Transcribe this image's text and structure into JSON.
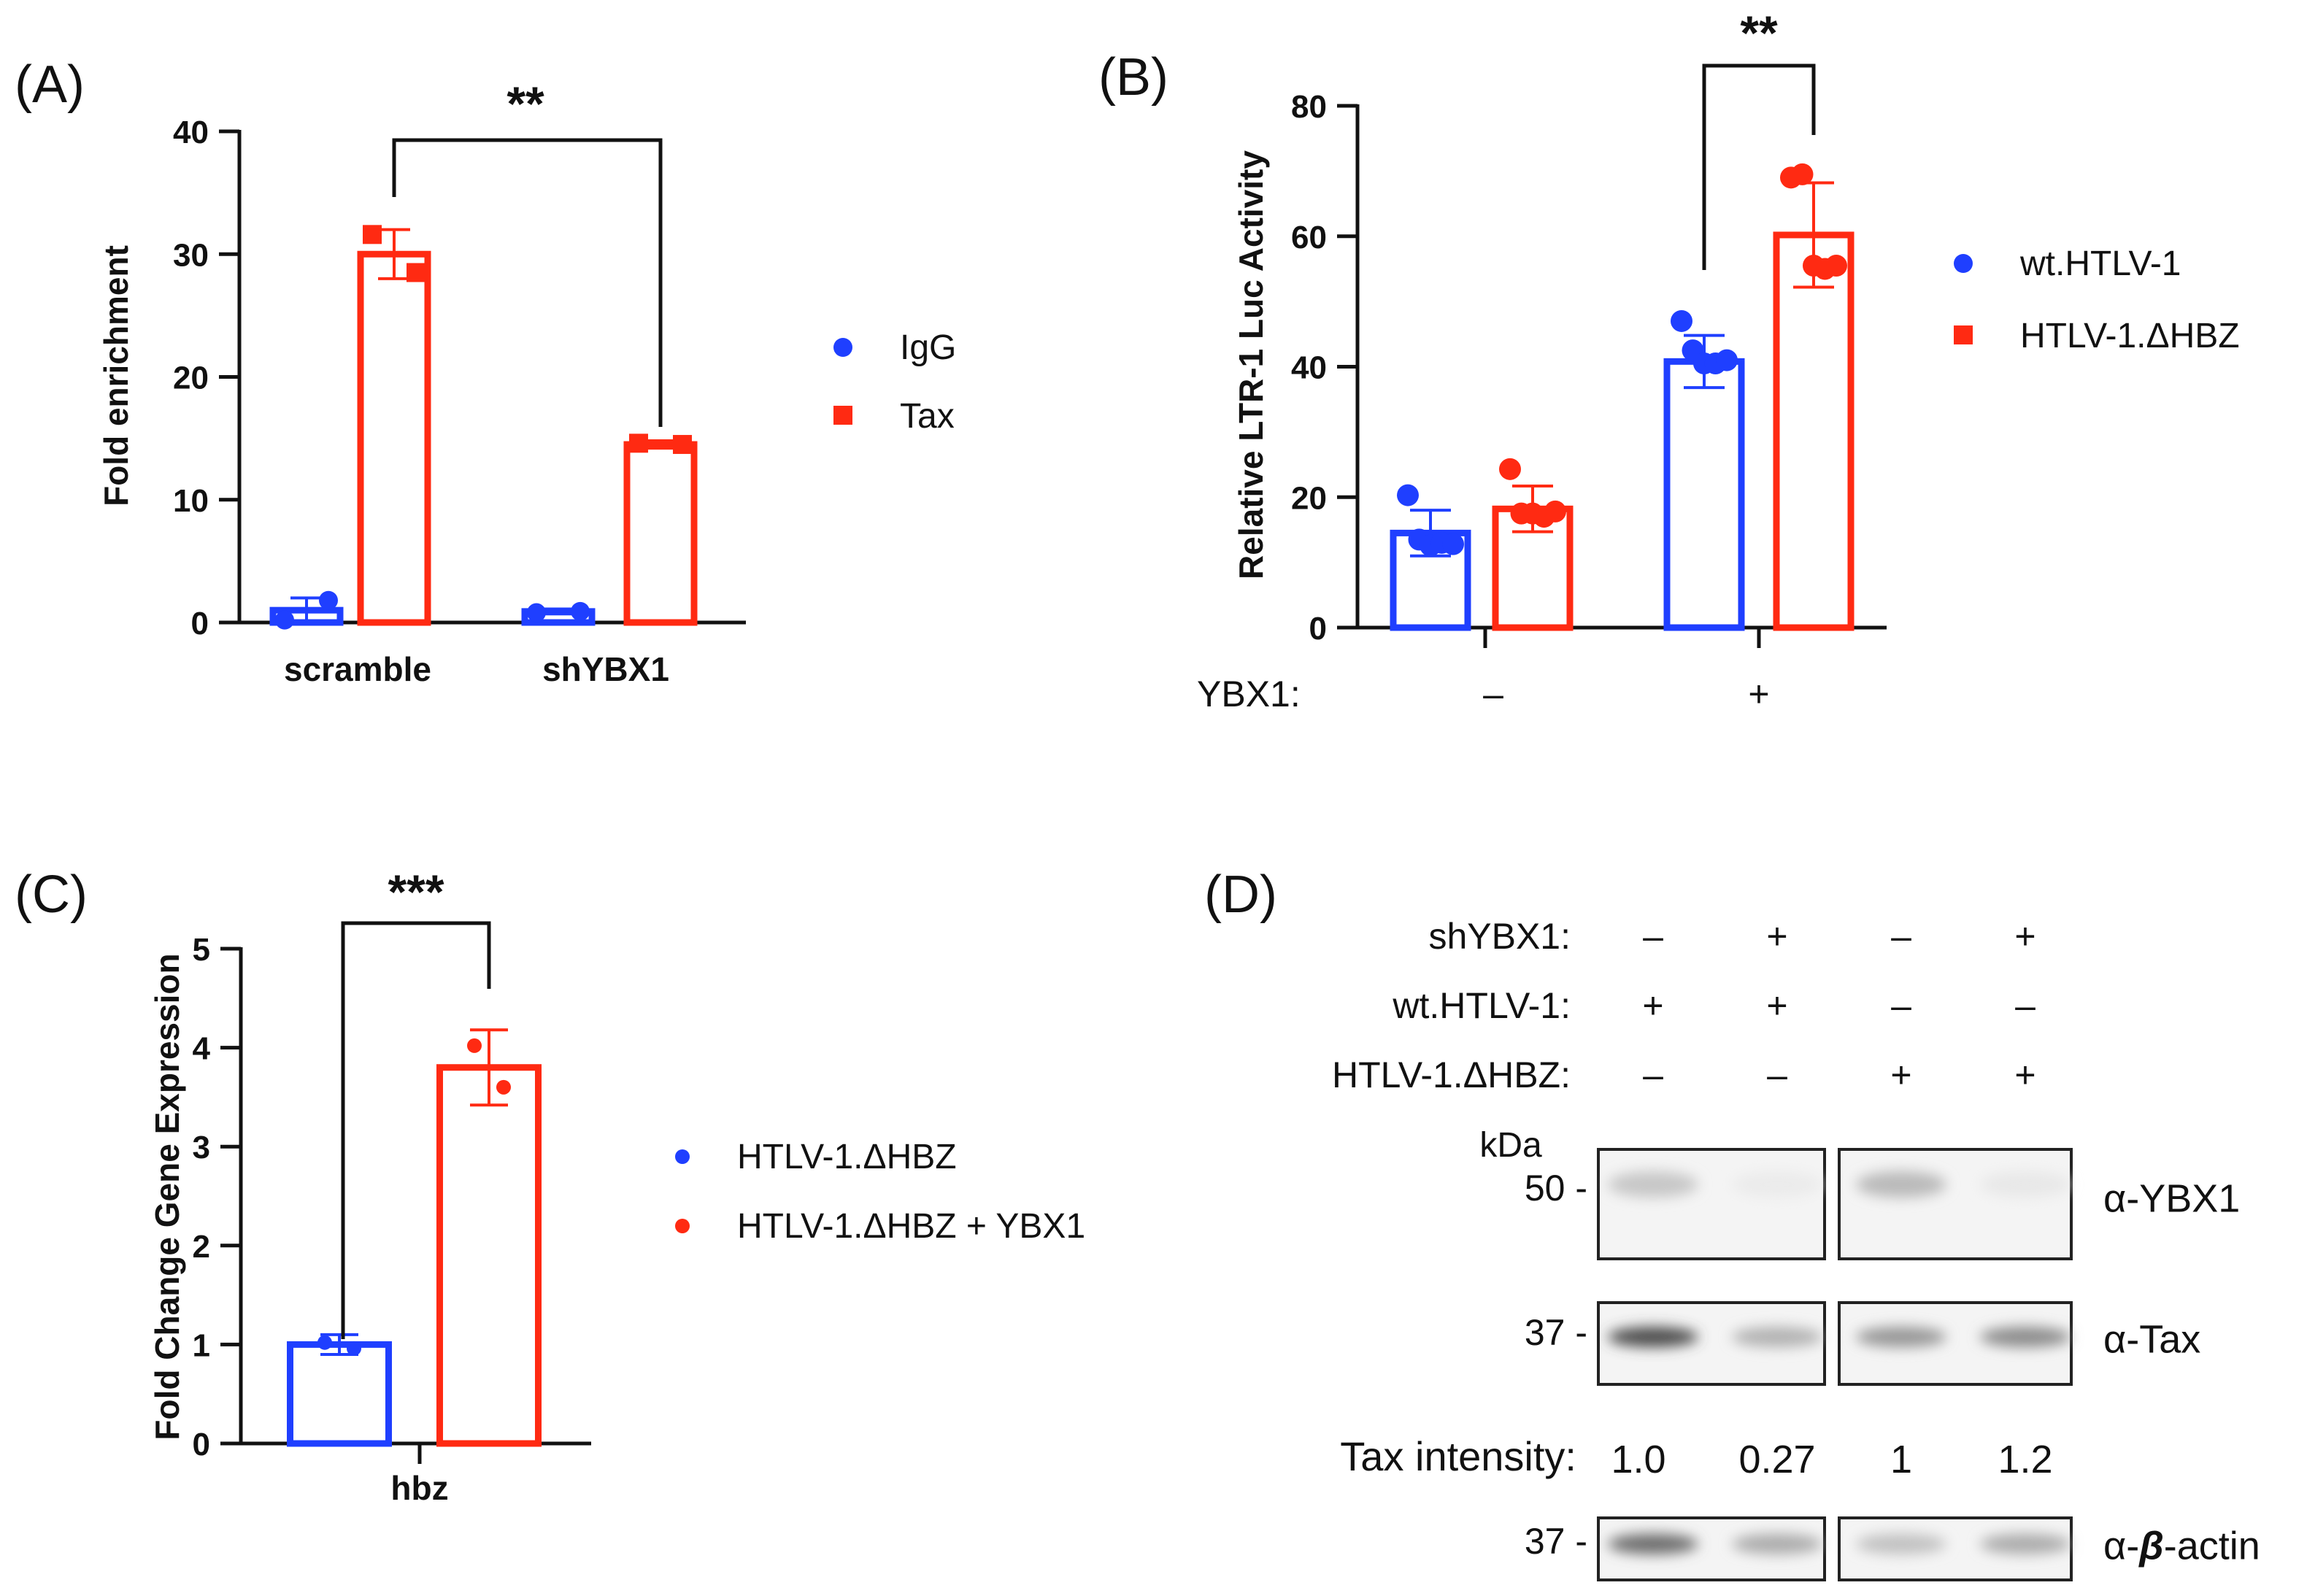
{
  "colors": {
    "blue": "#1f3fff",
    "red": "#ff2a12",
    "axis": "#111111"
  },
  "chart_data": [
    {
      "panel": "(A)",
      "type": "bar",
      "ylabel": "Fold enrichment",
      "ylim": [
        0,
        40
      ],
      "yticks": [
        "0",
        "10",
        "20",
        "30",
        "40"
      ],
      "categories": [
        "scramble",
        "shYBX1"
      ],
      "legend": [
        {
          "name": "IgG",
          "marker": "circle"
        },
        {
          "name": "Tax",
          "marker": "square"
        }
      ],
      "series": [
        {
          "name": "IgG",
          "values": [
            1.0,
            0.9
          ],
          "errors": [
            1.0,
            0.2
          ],
          "points": [
            [
              0.2,
              1.8
            ],
            [
              0.8,
              0.9
            ]
          ]
        },
        {
          "name": "Tax",
          "values": [
            30,
            14.5
          ],
          "errors": [
            2.0,
            0.3
          ],
          "points": [
            [
              31.6,
              28.5
            ],
            [
              14.6,
              14.5
            ]
          ]
        }
      ],
      "significance": {
        "label": "**"
      }
    },
    {
      "panel": "(B)",
      "type": "bar",
      "ylabel": "Relative  LTR-1 Luc  Activity",
      "ylim": [
        0,
        80
      ],
      "yticks": [
        "0",
        "20",
        "40",
        "60",
        "80"
      ],
      "xlabel": "YBX1:",
      "categories": [
        "–",
        "+"
      ],
      "legend": [
        {
          "name": "wt.HTLV-1",
          "marker": "circle"
        },
        {
          "name": "HTLV-1.ΔHBZ",
          "marker": "square"
        }
      ],
      "series": [
        {
          "name": "wt.HTLV-1",
          "values": [
            14.5,
            40.8
          ],
          "errors": [
            3.5,
            4.0
          ],
          "points": [
            [
              20.3,
              13.5,
              12.6,
              13.0,
              12.8
            ],
            [
              47.0,
              42.5,
              40.5,
              40.5,
              41.0
            ]
          ]
        },
        {
          "name": "HTLV-1.ΔHBZ",
          "values": [
            18.2,
            60.2
          ],
          "errors": [
            3.5,
            8.0
          ],
          "points": [
            [
              24.3,
              17.5,
              17.5,
              17.0,
              17.8
            ],
            [
              69.0,
              69.5,
              55.5,
              55.0,
              55.5
            ]
          ]
        }
      ],
      "significance": {
        "label": "**"
      }
    },
    {
      "panel": "(C)",
      "type": "bar",
      "ylabel": "Fold Change Gene  Expression",
      "ylim": [
        0,
        5
      ],
      "yticks": [
        "0",
        "1",
        "2",
        "3",
        "4",
        "5"
      ],
      "categories": [
        "hbz"
      ],
      "legend": [
        {
          "name": "HTLV-1.ΔHBZ",
          "marker": "dot"
        },
        {
          "name": "HTLV-1.ΔHBZ + YBX1",
          "marker": "dot"
        }
      ],
      "series": [
        {
          "name": "HTLV-1.ΔHBZ",
          "values": [
            1.0
          ],
          "errors": [
            0.1
          ],
          "points": [
            [
              1.02,
              0.96
            ]
          ]
        },
        {
          "name": "HTLV-1.ΔHBZ + YBX1",
          "values": [
            3.8
          ],
          "errors": [
            0.38
          ],
          "points": [
            [
              4.02,
              3.6
            ]
          ]
        }
      ],
      "significance": {
        "label": "***"
      }
    }
  ],
  "blot": {
    "panel": "(D)",
    "conditions": [
      {
        "label": "shYBX1:",
        "values": [
          "–",
          "+",
          "–",
          "+"
        ]
      },
      {
        "label": "wt.HTLV-1:",
        "values": [
          "+",
          "+",
          "–",
          "–"
        ]
      },
      {
        "label": "HTLV-1.ΔHBZ:",
        "values": [
          "–",
          "–",
          "+",
          "+"
        ]
      }
    ],
    "kda_label": "kDa",
    "rows": [
      {
        "antibody": "α-YBX1",
        "marker": "50 -",
        "intensities": [
          0.22,
          0.05,
          0.28,
          0.06
        ]
      },
      {
        "antibody": "α-Tax",
        "marker": "37 -",
        "intensities": [
          0.8,
          0.32,
          0.45,
          0.5
        ]
      },
      {
        "antibody_prefix": "α-",
        "antibody_symbol": "β",
        "antibody_suffix": "-actin",
        "marker": "37 -",
        "intensities": [
          0.65,
          0.35,
          0.25,
          0.35
        ]
      }
    ],
    "tax_intensity": {
      "label": "Tax intensity:",
      "values": [
        "1.0",
        "0.27",
        "1",
        "1.2"
      ]
    }
  }
}
